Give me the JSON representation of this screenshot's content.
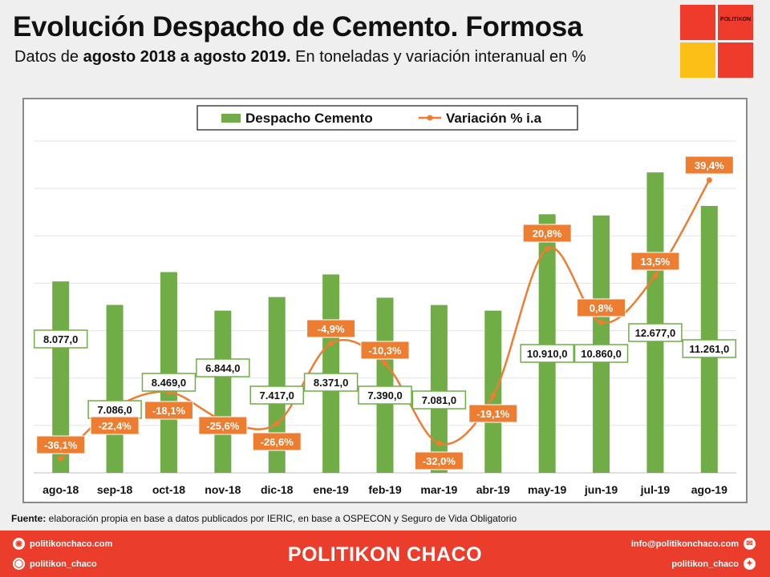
{
  "header": {
    "title": "Evolución Despacho de Cemento. Formosa",
    "subtitle_parts": [
      "Datos de ",
      "agosto 2018 a agosto 2019.",
      " En toneladas y variación interanual en %"
    ]
  },
  "logo": {
    "text": "POLITIKON",
    "colors": [
      "#ef3b2c",
      "#fbbf16"
    ]
  },
  "chart_data": {
    "type": "bar",
    "categories": [
      "ago-18",
      "sep-18",
      "oct-18",
      "nov-18",
      "dic-18",
      "ene-19",
      "feb-19",
      "mar-19",
      "abr-19",
      "may-19",
      "jun-19",
      "jul-19",
      "ago-19"
    ],
    "series": [
      {
        "name": "Despacho Cemento",
        "type": "bar",
        "color": "#70ad47",
        "values": [
          8077.0,
          7086.0,
          8469.0,
          6844.0,
          7417.0,
          8371.0,
          7390.0,
          7081.0,
          6844.0,
          10910.0,
          10860.0,
          12677.0,
          11261.0
        ],
        "labels": [
          "8.077,0",
          "7.086,0",
          "8.469,0",
          "6.844,0",
          "7.417,0",
          "8.371,0",
          "7.390,0",
          "7.081,0",
          "",
          "10.910,0",
          "10.860,0",
          "12.677,0",
          "11.261,0"
        ]
      },
      {
        "name": "Variación % i.a",
        "type": "line",
        "color": "#ed7d31",
        "values": [
          -36.1,
          -22.4,
          -18.1,
          -25.6,
          -26.6,
          -4.9,
          -10.3,
          -32.0,
          -19.1,
          20.8,
          0.8,
          13.5,
          39.4
        ],
        "labels": [
          "-36,1%",
          "-22,4%",
          "-18,1%",
          "-25,6%",
          "-26,6%",
          "-4,9%",
          "-10,3%",
          "-32,0%",
          "-19,1%",
          "20,8%",
          "0,8%",
          "13,5%",
          "39,4%"
        ]
      }
    ],
    "bar_axis": [
      0,
      14000
    ],
    "line_axis": [
      -40,
      50
    ],
    "grid": true,
    "legend": "top"
  },
  "source": {
    "label": "Fuente:",
    "text": " elaboración propia en base a datos publicados por IERIC, en base a OSPECON y Seguro de Vida Obligatorio"
  },
  "footer": {
    "brand": "POLITIKON CHACO",
    "website": "politikonchaco.com",
    "instagram": "politikon_chaco",
    "email": "info@politikonchaco.com",
    "twitter": "politikon_chaco"
  }
}
